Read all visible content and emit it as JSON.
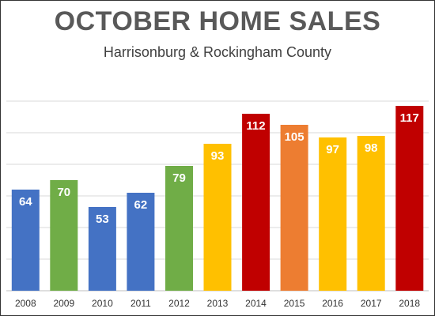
{
  "chart_data": {
    "type": "bar",
    "title": "OCTOBER HOME SALES",
    "subtitle": "Harrisonburg & Rockingham County",
    "xlabel": "",
    "ylabel": "",
    "categories": [
      "2008",
      "2009",
      "2010",
      "2011",
      "2012",
      "2013",
      "2014",
      "2015",
      "2016",
      "2017",
      "2018"
    ],
    "values": [
      64,
      70,
      53,
      62,
      79,
      93,
      112,
      105,
      97,
      98,
      117
    ],
    "bar_colors": [
      "#4472C4",
      "#70AD47",
      "#4472C4",
      "#4472C4",
      "#70AD47",
      "#FFC000",
      "#C00000",
      "#ED7D31",
      "#FFC000",
      "#FFC000",
      "#C00000"
    ],
    "ylim": [
      0,
      140
    ],
    "y_gridlines": [
      20,
      40,
      60,
      80,
      100,
      120
    ],
    "grid": true,
    "y_tick_labels_visible": false,
    "data_labels": true
  }
}
